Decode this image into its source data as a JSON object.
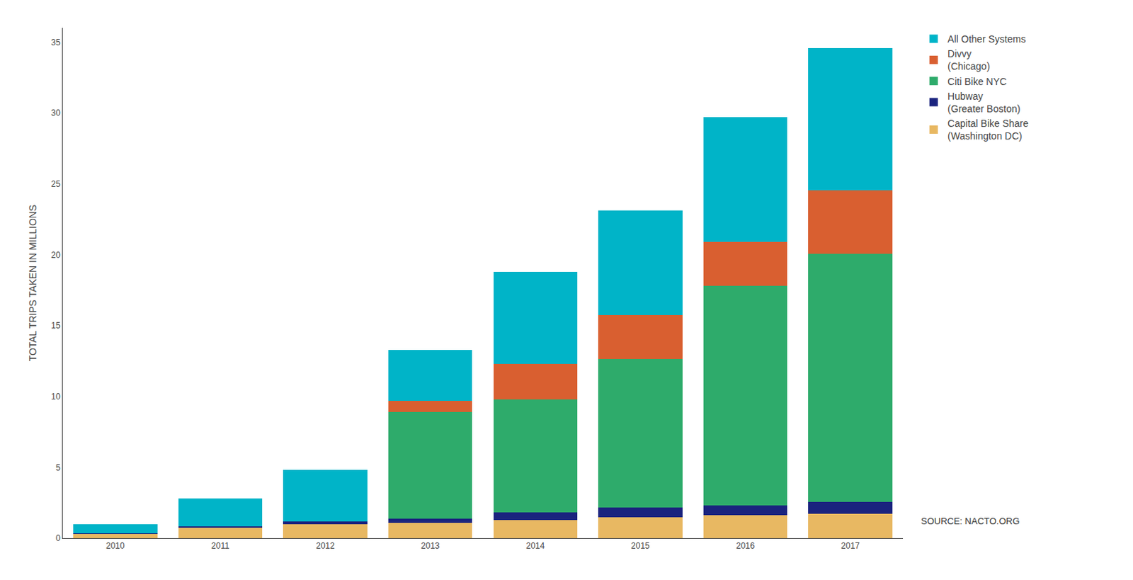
{
  "chart_data": {
    "type": "bar",
    "stacked": true,
    "categories": [
      "2010",
      "2011",
      "2012",
      "2013",
      "2014",
      "2015",
      "2016",
      "2017"
    ],
    "series": [
      {
        "name": "Capital Bike Share\n(Washington DC)",
        "color": "#E8B862",
        "values": [
          0.3,
          0.75,
          1.0,
          1.1,
          1.3,
          1.5,
          1.6,
          1.7
        ]
      },
      {
        "name": "Hubway\n(Greater Boston)",
        "color": "#1A237E",
        "values": [
          0.05,
          0.1,
          0.2,
          0.3,
          0.5,
          0.65,
          0.7,
          0.85
        ]
      },
      {
        "name": "Citi Bike NYC",
        "color": "#2EAB6B",
        "values": [
          0.0,
          0.0,
          0.0,
          7.5,
          8.0,
          10.5,
          15.5,
          17.5
        ]
      },
      {
        "name": "Divvy\n(Chicago)",
        "color": "#D95F30",
        "values": [
          0.0,
          0.0,
          0.0,
          0.8,
          2.5,
          3.1,
          3.1,
          4.5
        ]
      },
      {
        "name": "All Other Systems",
        "color": "#00B4C8",
        "values": [
          0.65,
          1.95,
          3.6,
          3.6,
          6.5,
          7.35,
          8.8,
          10.0
        ]
      }
    ],
    "y_label": "TOTAL TRIPS TAKEN IN MILLIONS",
    "ylim": [
      0,
      36
    ],
    "yticks": [
      0,
      5,
      10,
      15,
      20,
      25,
      30,
      35
    ],
    "grid": false,
    "legend": "right",
    "annotations": [
      "SOURCE: NACTO.ORG"
    ]
  }
}
